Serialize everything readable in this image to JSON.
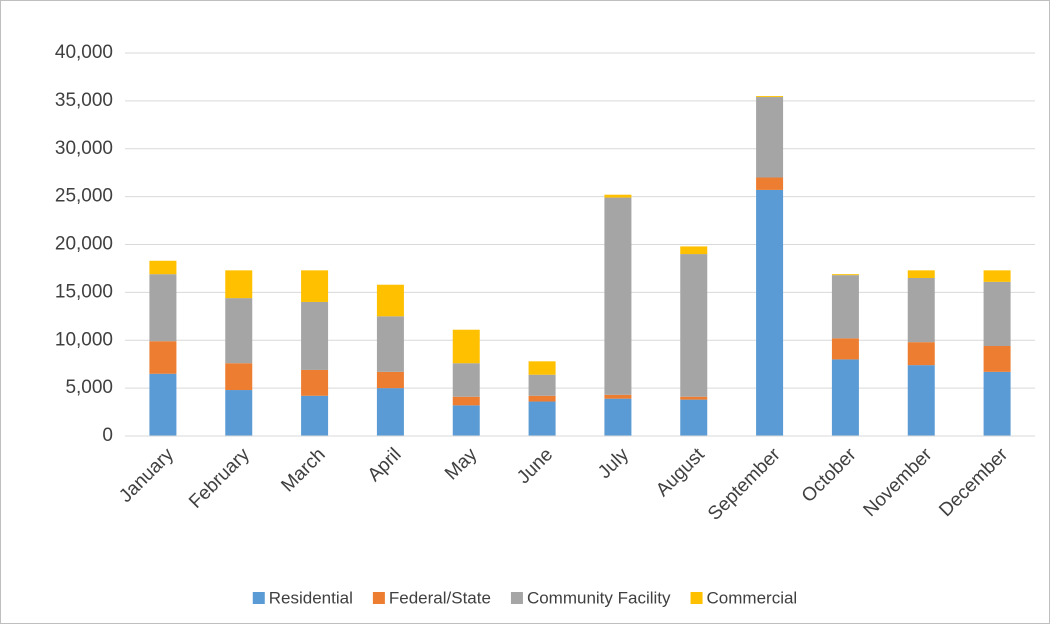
{
  "chart_data": {
    "type": "stacked_bar",
    "categories": [
      "January",
      "February",
      "March",
      "April",
      "May",
      "June",
      "July",
      "August",
      "September",
      "October",
      "November",
      "December"
    ],
    "series": [
      {
        "name": "Residential",
        "color": "#5b9bd5",
        "values": [
          6500,
          4800,
          4200,
          5000,
          3200,
          3600,
          3900,
          3800,
          25700,
          8000,
          7400,
          6700
        ]
      },
      {
        "name": "Federal/State",
        "color": "#ed7d31",
        "values": [
          3400,
          2800,
          2700,
          1700,
          900,
          600,
          400,
          300,
          1300,
          2200,
          2400,
          2700
        ]
      },
      {
        "name": "Community Facility",
        "color": "#a5a5a5",
        "values": [
          7000,
          6800,
          7100,
          5800,
          3500,
          2200,
          20600,
          14900,
          8400,
          6600,
          6700,
          6700
        ]
      },
      {
        "name": "Commercial",
        "color": "#ffc000",
        "values": [
          1400,
          2900,
          3300,
          3300,
          3500,
          1400,
          300,
          800,
          100,
          100,
          800,
          1200
        ]
      }
    ],
    "ylim": [
      0,
      40000
    ],
    "yticks": [
      0,
      {
        "value": 5000,
        "label": "5,000"
      },
      {
        "value": 10000,
        "label": "10,000"
      },
      {
        "value": 15000,
        "label": "15,000"
      },
      {
        "value": 20000,
        "label": "20,000"
      },
      {
        "value": 25000,
        "label": "25,000"
      },
      {
        "value": 30000,
        "label": "30,000"
      },
      {
        "value": 35000,
        "label": "35,000"
      },
      {
        "value": 40000,
        "label": "40,000"
      }
    ],
    "grid": true,
    "legend": "bottom"
  }
}
